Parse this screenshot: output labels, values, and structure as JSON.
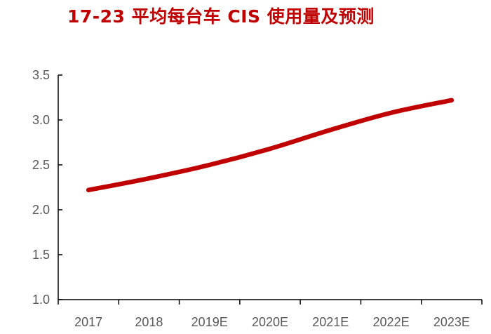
{
  "colors": {
    "title": "#c00000",
    "line": "#c00000",
    "axis": "#000000",
    "tick_label": "#595959"
  },
  "chart_data": {
    "type": "line",
    "title": "17-23 平均每台车 CIS 使用量及预测",
    "xlabel": "",
    "ylabel": "",
    "categories": [
      "2017",
      "2018",
      "2019E",
      "2020E",
      "2021E",
      "2022E",
      "2023E"
    ],
    "series": [
      {
        "values": [
          2.22,
          2.35,
          2.5,
          2.68,
          2.89,
          3.08,
          3.22
        ]
      }
    ],
    "ylim": [
      1.0,
      3.5
    ],
    "yticks": [
      "1.0",
      "1.5",
      "2.0",
      "2.5",
      "3.0",
      "3.5"
    ],
    "grid": false,
    "legend": "none"
  }
}
